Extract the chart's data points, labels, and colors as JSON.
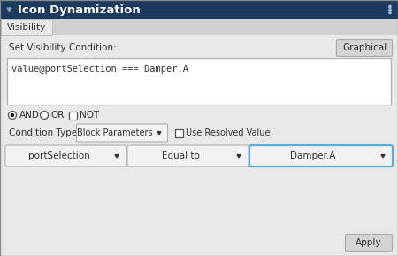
{
  "title": "Icon Dynamization",
  "title_bg_color": "#1b3a5e",
  "title_text_color": "#ffffff",
  "title_font_size": 9.5,
  "tab_label": "Visibility",
  "panel_bg_color": "#e8e8e8",
  "tab_active_bg": "#e8e8e8",
  "tab_inactive_bg": "#d0d0d0",
  "set_visibility_label": "Set Visibility Condition:",
  "graphical_button_label": "Graphical",
  "condition_text": "value@portSelection === Damper.A",
  "textbox_bg": "#ffffff",
  "textbox_border": "#b0b0b0",
  "radio_and_label": "AND",
  "radio_or_label": "OR",
  "checkbox_not_label": "NOT",
  "condition_type_label": "Condition Type",
  "dropdown1_label": "Block Parameters",
  "checkbox2_label": "Use Resolved Value",
  "dropdown_portsel_label": "portSelection",
  "dropdown_equalto_label": "Equal to",
  "dropdown_dampera_label": "Damper.A",
  "apply_button_label": "Apply",
  "dropdown_dampera_border": "#5aacdf",
  "button_bg": "#d4d4d4",
  "dropdown_bg": "#f2f2f2",
  "dropdown_border": "#b0b0b0",
  "font_size": 7.5,
  "small_font_size": 7.0,
  "label_color": "#333333",
  "outer_border_color": "#888888"
}
